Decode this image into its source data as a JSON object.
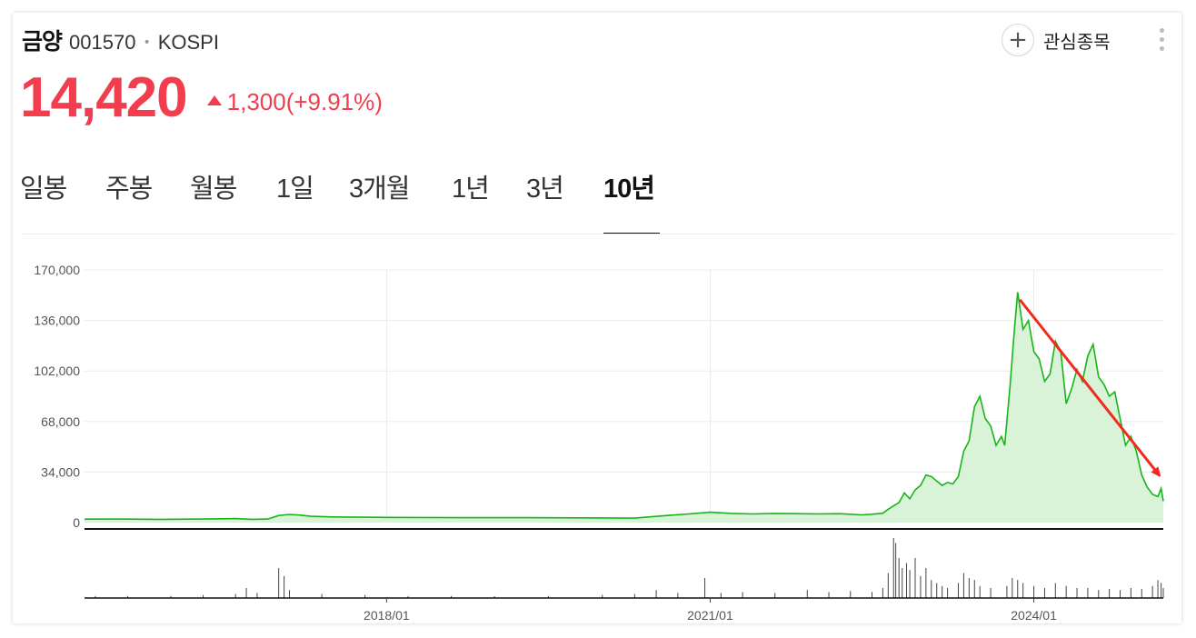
{
  "header": {
    "stock_name": "금양",
    "stock_code": "001570",
    "separator": "•",
    "market": "KOSPI",
    "favorite_label": "관심종목",
    "plus_icon": "plus-icon",
    "more_icon": "more-vertical-icon"
  },
  "quote": {
    "price": "14,420",
    "change": "1,300(+9.91%)",
    "direction": "up",
    "color": "#f23d4f"
  },
  "tabs": [
    {
      "label": "일봉",
      "active": false
    },
    {
      "label": "주봉",
      "active": false
    },
    {
      "label": "월봉",
      "active": false
    },
    {
      "label": "1일",
      "active": false
    },
    {
      "label": "3개월",
      "active": false
    },
    {
      "label": "1년",
      "active": false
    },
    {
      "label": "3년",
      "active": false
    },
    {
      "label": "10년",
      "active": true
    }
  ],
  "chart_data": {
    "type": "area",
    "line_color": "#19b419",
    "fill_color": "#d8f3d8",
    "trend_arrow_color": "#f02b1d",
    "ylim": [
      0,
      170000
    ],
    "yticks": [
      "0",
      "34,000",
      "68,000",
      "102,000",
      "136,000",
      "170,000"
    ],
    "ytick_values": [
      0,
      34000,
      68000,
      102000,
      136000,
      170000
    ],
    "xtick_labels": [
      "2018/01",
      "2021/01",
      "2024/01"
    ],
    "xtick_values": [
      2018.0,
      2021.0,
      2024.0
    ],
    "xlim": [
      2015.2,
      2025.2
    ],
    "grid": true,
    "series": [
      {
        "points": [
          [
            2015.2,
            2300
          ],
          [
            2015.5,
            2400
          ],
          [
            2015.9,
            2200
          ],
          [
            2016.3,
            2400
          ],
          [
            2016.6,
            2700
          ],
          [
            2016.75,
            2200
          ],
          [
            2016.9,
            2400
          ],
          [
            2017.0,
            4800
          ],
          [
            2017.1,
            5500
          ],
          [
            2017.2,
            5000
          ],
          [
            2017.3,
            4200
          ],
          [
            2017.5,
            3800
          ],
          [
            2017.8,
            3600
          ],
          [
            2018.0,
            3500
          ],
          [
            2018.3,
            3400
          ],
          [
            2018.8,
            3300
          ],
          [
            2019.3,
            3300
          ],
          [
            2019.8,
            3200
          ],
          [
            2020.0,
            3100
          ],
          [
            2020.3,
            3000
          ],
          [
            2020.6,
            4800
          ],
          [
            2020.8,
            5800
          ],
          [
            2021.0,
            7000
          ],
          [
            2021.2,
            6200
          ],
          [
            2021.4,
            5800
          ],
          [
            2021.6,
            6200
          ],
          [
            2021.8,
            6000
          ],
          [
            2022.0,
            5800
          ],
          [
            2022.2,
            6000
          ],
          [
            2022.4,
            5200
          ],
          [
            2022.5,
            5600
          ],
          [
            2022.6,
            6300
          ],
          [
            2022.65,
            9000
          ],
          [
            2022.75,
            13500
          ],
          [
            2022.8,
            20000
          ],
          [
            2022.85,
            16000
          ],
          [
            2022.9,
            22000
          ],
          [
            2022.95,
            25000
          ],
          [
            2023.0,
            32000
          ],
          [
            2023.05,
            31000
          ],
          [
            2023.1,
            28000
          ],
          [
            2023.15,
            25000
          ],
          [
            2023.2,
            27000
          ],
          [
            2023.25,
            26000
          ],
          [
            2023.3,
            31000
          ],
          [
            2023.35,
            48000
          ],
          [
            2023.4,
            55000
          ],
          [
            2023.45,
            78000
          ],
          [
            2023.5,
            85000
          ],
          [
            2023.55,
            70000
          ],
          [
            2023.6,
            65000
          ],
          [
            2023.65,
            52000
          ],
          [
            2023.7,
            58000
          ],
          [
            2023.73,
            52000
          ],
          [
            2023.78,
            92000
          ],
          [
            2023.82,
            130000
          ],
          [
            2023.85,
            155000
          ],
          [
            2023.9,
            130000
          ],
          [
            2023.95,
            136000
          ],
          [
            2024.0,
            115000
          ],
          [
            2024.05,
            110000
          ],
          [
            2024.1,
            95000
          ],
          [
            2024.15,
            100000
          ],
          [
            2024.2,
            122000
          ],
          [
            2024.25,
            115000
          ],
          [
            2024.3,
            80000
          ],
          [
            2024.35,
            90000
          ],
          [
            2024.4,
            103000
          ],
          [
            2024.45,
            95000
          ],
          [
            2024.5,
            112000
          ],
          [
            2024.55,
            120000
          ],
          [
            2024.6,
            98000
          ],
          [
            2024.65,
            93000
          ],
          [
            2024.7,
            85000
          ],
          [
            2024.75,
            88000
          ],
          [
            2024.8,
            70000
          ],
          [
            2024.85,
            52000
          ],
          [
            2024.9,
            58000
          ],
          [
            2024.95,
            48000
          ],
          [
            2025.0,
            32000
          ],
          [
            2025.05,
            24000
          ],
          [
            2025.1,
            19000
          ],
          [
            2025.15,
            17500
          ],
          [
            2025.18,
            23000
          ],
          [
            2025.2,
            14420
          ]
        ]
      }
    ],
    "volume": {
      "color": "#444444",
      "bars": [
        [
          2015.3,
          2
        ],
        [
          2015.6,
          2
        ],
        [
          2016.0,
          2
        ],
        [
          2016.3,
          3
        ],
        [
          2016.6,
          4
        ],
        [
          2016.7,
          10
        ],
        [
          2016.8,
          5
        ],
        [
          2017.0,
          30
        ],
        [
          2017.05,
          22
        ],
        [
          2017.1,
          8
        ],
        [
          2017.4,
          4
        ],
        [
          2017.8,
          3
        ],
        [
          2018.2,
          2
        ],
        [
          2018.6,
          2
        ],
        [
          2019.0,
          2
        ],
        [
          2019.5,
          2
        ],
        [
          2020.0,
          3
        ],
        [
          2020.3,
          4
        ],
        [
          2020.5,
          8
        ],
        [
          2020.7,
          5
        ],
        [
          2020.95,
          20
        ],
        [
          2021.1,
          5
        ],
        [
          2021.3,
          6
        ],
        [
          2021.6,
          5
        ],
        [
          2021.9,
          8
        ],
        [
          2022.1,
          6
        ],
        [
          2022.3,
          7
        ],
        [
          2022.5,
          6
        ],
        [
          2022.6,
          10
        ],
        [
          2022.65,
          25
        ],
        [
          2022.7,
          60
        ],
        [
          2022.72,
          55
        ],
        [
          2022.75,
          40
        ],
        [
          2022.78,
          30
        ],
        [
          2022.82,
          35
        ],
        [
          2022.85,
          28
        ],
        [
          2022.9,
          40
        ],
        [
          2022.95,
          22
        ],
        [
          2023.0,
          30
        ],
        [
          2023.05,
          18
        ],
        [
          2023.1,
          15
        ],
        [
          2023.15,
          12
        ],
        [
          2023.2,
          10
        ],
        [
          2023.3,
          15
        ],
        [
          2023.35,
          25
        ],
        [
          2023.4,
          20
        ],
        [
          2023.45,
          18
        ],
        [
          2023.5,
          12
        ],
        [
          2023.6,
          10
        ],
        [
          2023.75,
          12
        ],
        [
          2023.8,
          20
        ],
        [
          2023.85,
          18
        ],
        [
          2023.9,
          15
        ],
        [
          2024.0,
          12
        ],
        [
          2024.1,
          10
        ],
        [
          2024.2,
          15
        ],
        [
          2024.3,
          12
        ],
        [
          2024.4,
          10
        ],
        [
          2024.5,
          10
        ],
        [
          2024.6,
          8
        ],
        [
          2024.7,
          9
        ],
        [
          2024.8,
          8
        ],
        [
          2024.9,
          10
        ],
        [
          2025.0,
          9
        ],
        [
          2025.1,
          12
        ],
        [
          2025.15,
          18
        ],
        [
          2025.18,
          15
        ],
        [
          2025.2,
          10
        ]
      ]
    }
  }
}
